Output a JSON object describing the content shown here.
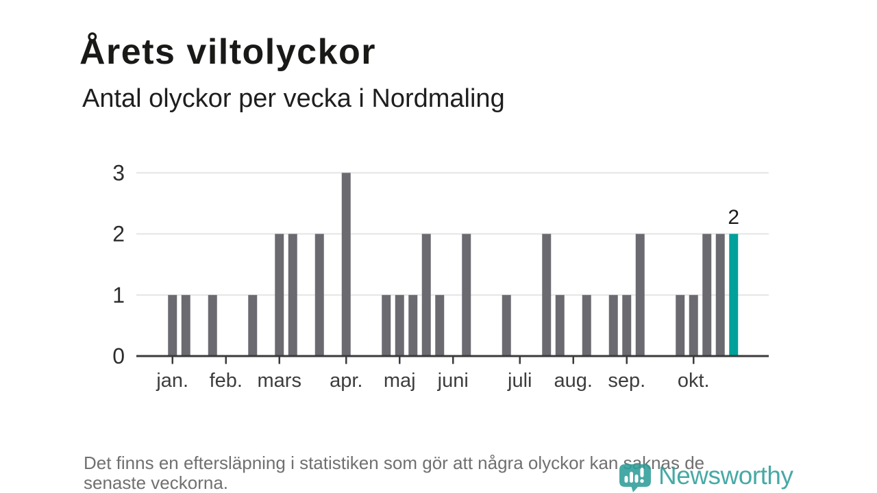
{
  "header": {
    "title": "Årets viltolyckor",
    "subtitle": "Antal olyckor per vecka i Nordmaling"
  },
  "chart_data": {
    "type": "bar",
    "title": "Årets viltolyckor",
    "subtitle": "Antal olyckor per vecka i Nordmaling",
    "x_description": "veckor (weekly slots, jan–okt plus two empty lead-in and trailing weeks)",
    "values": [
      0,
      0,
      1,
      1,
      0,
      1,
      0,
      0,
      1,
      0,
      2,
      2,
      0,
      2,
      0,
      3,
      0,
      0,
      1,
      1,
      1,
      2,
      1,
      0,
      2,
      0,
      0,
      1,
      0,
      0,
      2,
      1,
      0,
      1,
      0,
      1,
      1,
      2,
      0,
      0,
      1,
      1,
      2,
      2,
      2,
      0,
      0
    ],
    "month_ticks": [
      {
        "label": "jan.",
        "index": 2
      },
      {
        "label": "feb.",
        "index": 6
      },
      {
        "label": "mars",
        "index": 10
      },
      {
        "label": "apr.",
        "index": 15
      },
      {
        "label": "maj",
        "index": 19
      },
      {
        "label": "juni",
        "index": 23
      },
      {
        "label": "juli",
        "index": 28
      },
      {
        "label": "aug.",
        "index": 32
      },
      {
        "label": "sep.",
        "index": 36
      },
      {
        "label": "okt.",
        "index": 41
      }
    ],
    "y_ticks": [
      0,
      1,
      2,
      3
    ],
    "ylim": [
      0,
      3
    ],
    "grid": true,
    "legend_position": "none",
    "highlight": {
      "index": 44,
      "value": 2,
      "label": "2"
    },
    "colors": {
      "bar": "#6B6A70",
      "highlight": "#00A09B",
      "grid": "#E4E4E4",
      "axis": "#3A3A3A",
      "y_tick_label": "#2D2D2D",
      "x_tick_label": "#3D3D3D",
      "value_label": "#1A1A1A"
    }
  },
  "footer": {
    "note_lines": [
      "Det finns en eftersläpning i statistiken som gör att några olyckor kan saknas de",
      "senaste veckorna."
    ],
    "brand": "Newsworthy",
    "brand_color": "#2E9E99"
  }
}
